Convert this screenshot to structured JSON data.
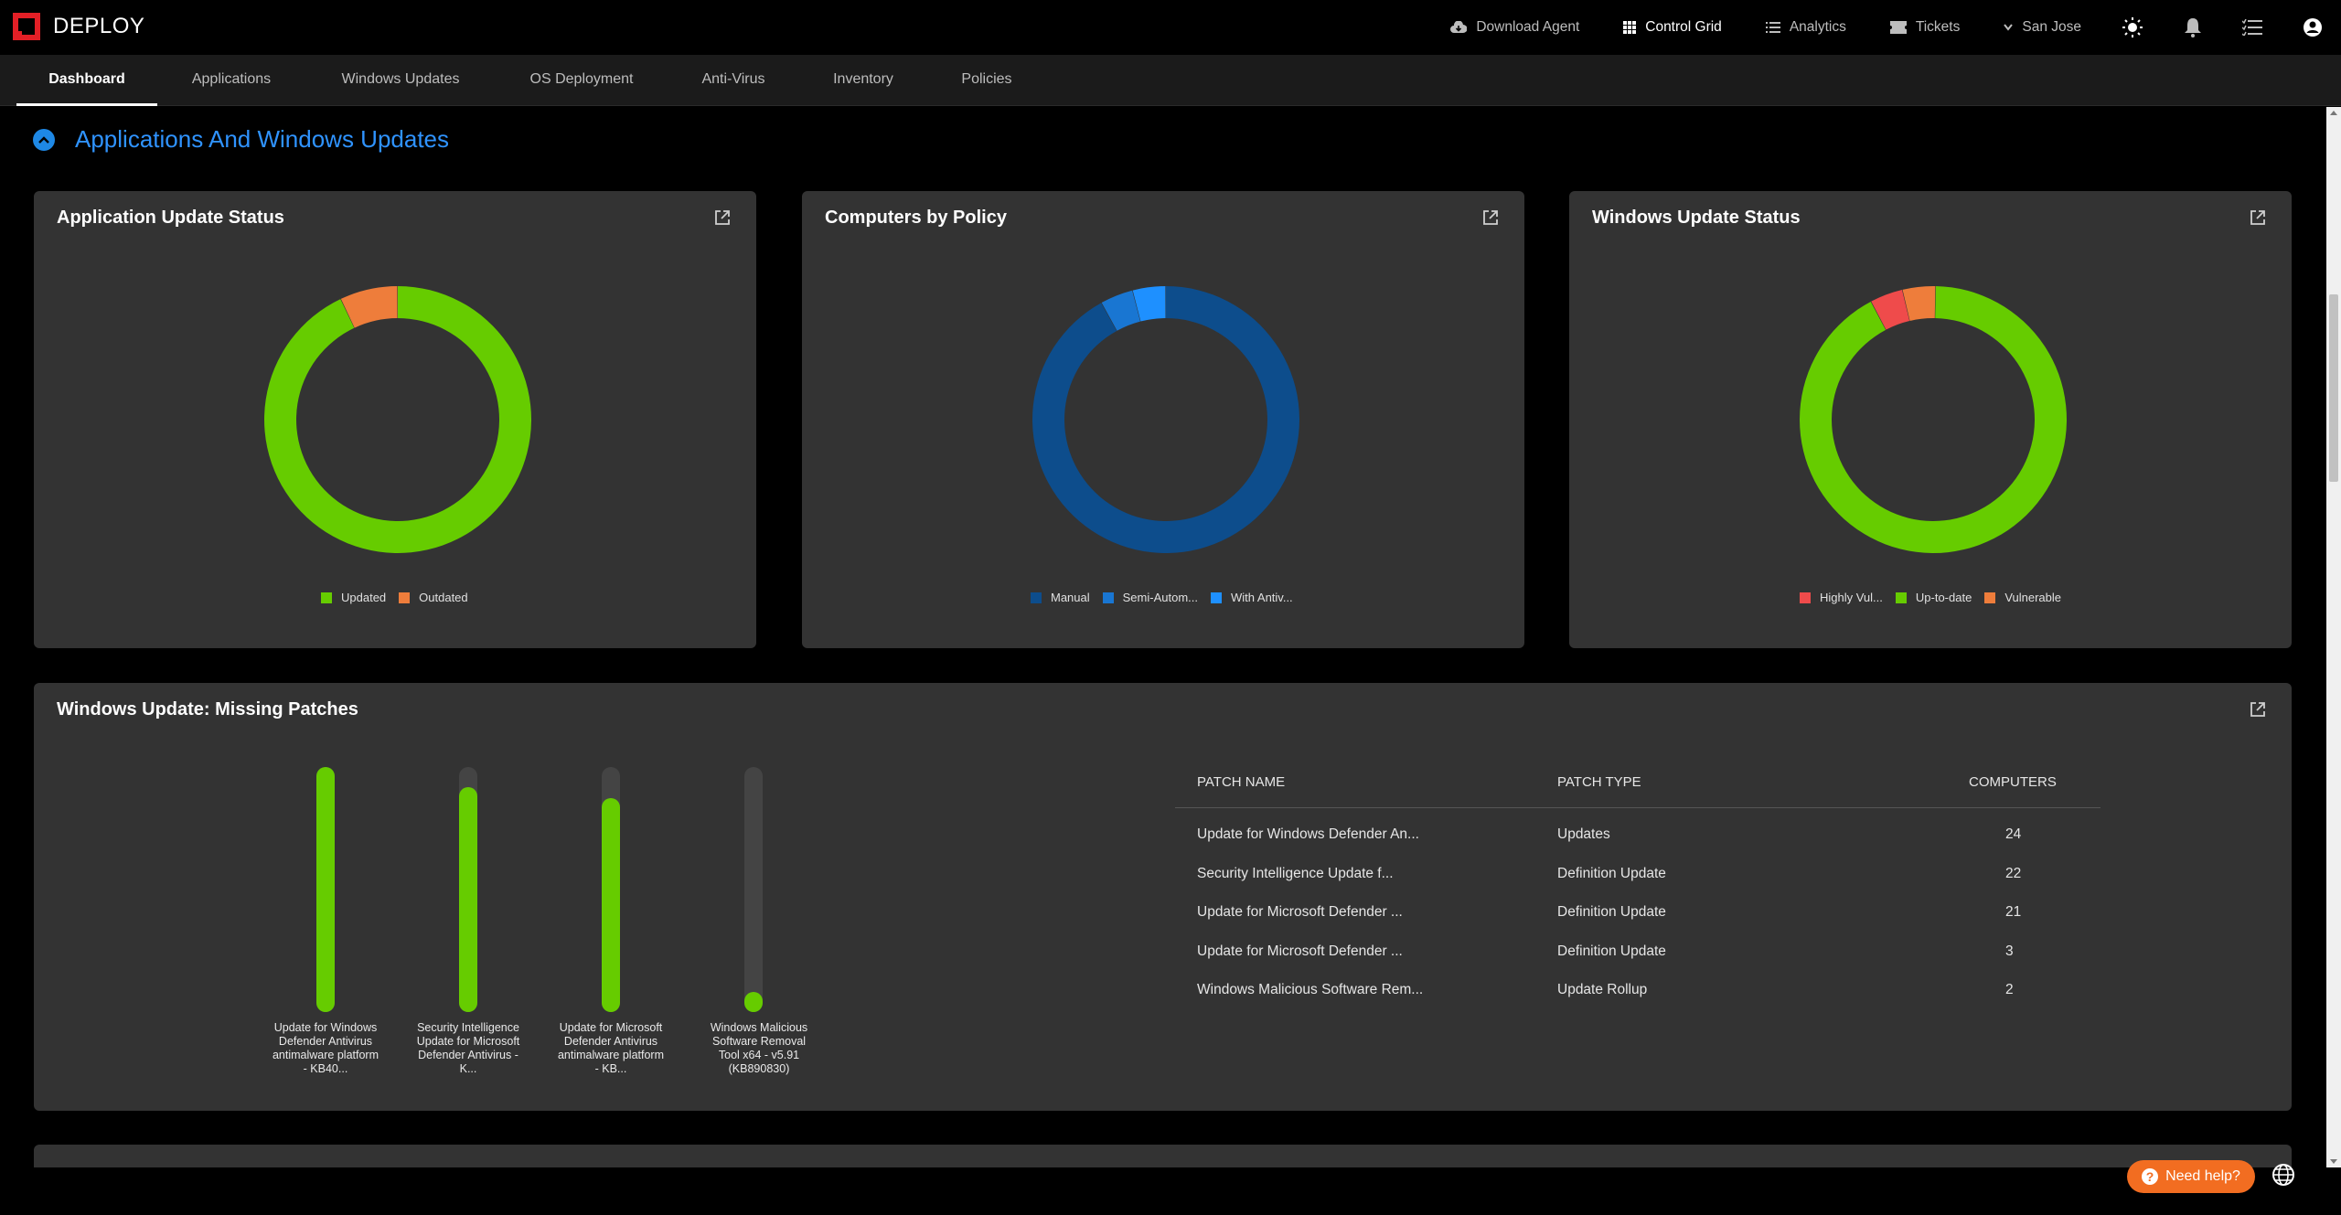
{
  "app": {
    "name": "DEPLOY",
    "brand_color": "#e31f26"
  },
  "topnav": {
    "download_agent": "Download Agent",
    "control_grid": "Control Grid",
    "analytics": "Analytics",
    "tickets": "Tickets",
    "location": "San Jose",
    "icons": [
      "sun-icon",
      "bell-icon",
      "task-list-icon",
      "user-icon"
    ]
  },
  "tabs": [
    "Dashboard",
    "Applications",
    "Windows Updates",
    "OS Deployment",
    "Anti-Virus",
    "Inventory",
    "Policies"
  ],
  "section": {
    "title": "Applications And Windows Updates"
  },
  "cards": {
    "app_update": {
      "title": "Application Update Status"
    },
    "by_policy": {
      "title": "Computers by Policy"
    },
    "win_update": {
      "title": "Windows Update Status"
    },
    "missing": {
      "title": "Windows Update: Missing Patches"
    }
  },
  "chart_data": [
    {
      "type": "pie",
      "title": "Application Update Status",
      "labels": [
        "Updated",
        "Outdated"
      ],
      "values": [
        93,
        7
      ],
      "colors": [
        "#66cc00",
        "#ee7d3b"
      ]
    },
    {
      "type": "pie",
      "title": "Computers by Policy",
      "labels": [
        "Manual",
        "Semi-Autom...",
        "With Antiv..."
      ],
      "values": [
        92,
        4,
        4
      ],
      "colors": [
        "#0d4d8c",
        "#1976d2",
        "#1e90ff"
      ]
    },
    {
      "type": "pie",
      "title": "Windows Update Status",
      "labels": [
        "Highly Vul...",
        "Up-to-date",
        "Vulnerable"
      ],
      "values": [
        4,
        92,
        4
      ],
      "colors": [
        "#ef4b4b",
        "#66cc00",
        "#ee7d3b"
      ]
    },
    {
      "type": "bar",
      "title": "Windows Update: Missing Patches",
      "categories": [
        "Update for Windows Defender Antivirus antimalware platform - KB40...",
        "Security Intelligence Update for Microsoft Defender Antivirus - K...",
        "Update for Microsoft Defender Antivirus antimalware platform - KB...",
        "Windows Malicious Software Removal Tool x64 - v5.91 (KB890830)"
      ],
      "values": [
        24,
        22,
        21,
        2
      ],
      "ylim": [
        0,
        24
      ]
    }
  ],
  "patch_table": {
    "headers": [
      "PATCH NAME",
      "PATCH TYPE",
      "COMPUTERS"
    ],
    "rows": [
      [
        "Update for Windows Defender An...",
        "Updates",
        "24"
      ],
      [
        "Security Intelligence Update f...",
        "Definition Update",
        "22"
      ],
      [
        "Update for Microsoft Defender ...",
        "Definition Update",
        "21"
      ],
      [
        "Update for Microsoft Defender ...",
        "Definition Update",
        "3"
      ],
      [
        "Windows Malicious Software Rem...",
        "Update Rollup",
        "2"
      ]
    ]
  },
  "help": {
    "label": "Need help?"
  }
}
